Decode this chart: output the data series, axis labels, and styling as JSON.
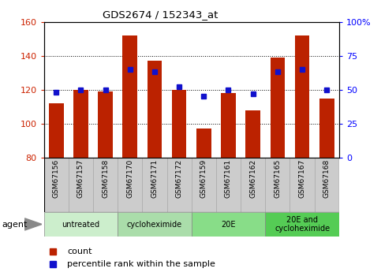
{
  "title": "GDS2674 / 152343_at",
  "samples": [
    "GSM67156",
    "GSM67157",
    "GSM67158",
    "GSM67170",
    "GSM67171",
    "GSM67172",
    "GSM67159",
    "GSM67161",
    "GSM67162",
    "GSM67165",
    "GSM67167",
    "GSM67168"
  ],
  "counts": [
    112,
    120,
    119,
    152,
    137,
    120,
    97,
    118,
    108,
    139,
    152,
    115
  ],
  "percentile_ranks": [
    48,
    50,
    50,
    65,
    63,
    52,
    45,
    50,
    47,
    63,
    65,
    50
  ],
  "bar_color": "#BB2200",
  "dot_color": "#1111CC",
  "ylim_left": [
    80,
    160
  ],
  "ylim_right": [
    0,
    100
  ],
  "yticks_left": [
    80,
    100,
    120,
    140,
    160
  ],
  "yticks_right": [
    0,
    25,
    50,
    75,
    100
  ],
  "ytick_labels_right": [
    "0",
    "25",
    "50",
    "75",
    "100%"
  ],
  "groups": [
    {
      "label": "untreated",
      "start": 0,
      "end": 3,
      "color": "#CCEECC"
    },
    {
      "label": "cycloheximide",
      "start": 3,
      "end": 6,
      "color": "#AADDAA"
    },
    {
      "label": "20E",
      "start": 6,
      "end": 9,
      "color": "#88DD88"
    },
    {
      "label": "20E and\ncycloheximide",
      "start": 9,
      "end": 12,
      "color": "#55CC55"
    }
  ],
  "agent_label": "agent",
  "legend_count_label": "count",
  "legend_pct_label": "percentile rank within the sample",
  "bar_bottom": 80,
  "tick_bg_color": "#CCCCCC",
  "tick_border_color": "#AAAAAA"
}
